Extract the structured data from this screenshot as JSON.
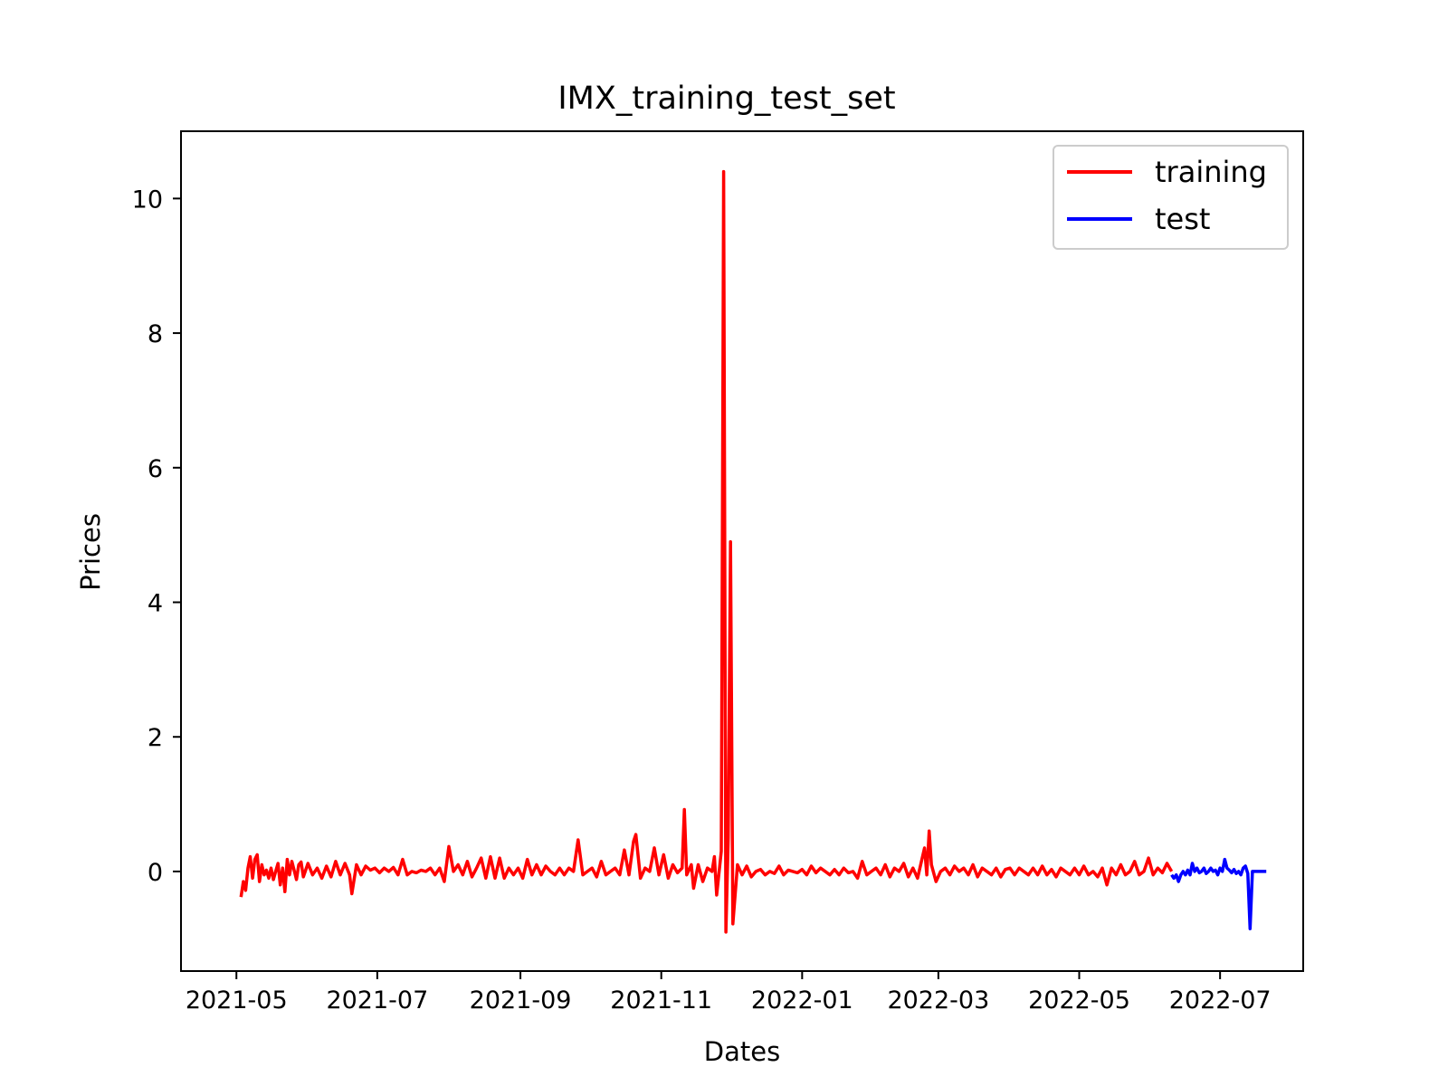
{
  "chart_data": {
    "type": "line",
    "title": "IMX_training_test_set",
    "xlabel": "Dates",
    "ylabel": "Prices",
    "x_type": "date",
    "xlim": [
      "2021-04-07",
      "2022-08-06"
    ],
    "ylim": [
      -1.48,
      11.0
    ],
    "x_ticks": [
      "2021-05-01",
      "2021-07-01",
      "2021-09-01",
      "2021-11-01",
      "2022-01-01",
      "2022-03-01",
      "2022-05-01",
      "2022-07-01"
    ],
    "x_tick_labels": [
      "2021-05",
      "2021-07",
      "2021-09",
      "2021-11",
      "2022-01",
      "2022-03",
      "2022-05",
      "2022-07"
    ],
    "y_ticks": [
      0,
      2,
      4,
      6,
      8,
      10
    ],
    "y_tick_labels": [
      "0",
      "2",
      "4",
      "6",
      "8",
      "10"
    ],
    "grid": false,
    "legend": {
      "position": "top-right"
    },
    "series": [
      {
        "name": "training",
        "color": "#ff0000",
        "points": [
          [
            "2021-05-03",
            -0.38
          ],
          [
            "2021-05-04",
            -0.15
          ],
          [
            "2021-05-05",
            -0.28
          ],
          [
            "2021-05-06",
            0.05
          ],
          [
            "2021-05-07",
            0.22
          ],
          [
            "2021-05-08",
            -0.1
          ],
          [
            "2021-05-09",
            0.18
          ],
          [
            "2021-05-10",
            0.25
          ],
          [
            "2021-05-11",
            -0.15
          ],
          [
            "2021-05-12",
            0.1
          ],
          [
            "2021-05-13",
            -0.05
          ],
          [
            "2021-05-14",
            0.02
          ],
          [
            "2021-05-15",
            -0.1
          ],
          [
            "2021-05-16",
            0.05
          ],
          [
            "2021-05-17",
            -0.12
          ],
          [
            "2021-05-18",
            0.0
          ],
          [
            "2021-05-19",
            0.12
          ],
          [
            "2021-05-20",
            -0.2
          ],
          [
            "2021-05-21",
            0.05
          ],
          [
            "2021-05-22",
            -0.3
          ],
          [
            "2021-05-23",
            0.18
          ],
          [
            "2021-05-24",
            -0.05
          ],
          [
            "2021-05-25",
            0.15
          ],
          [
            "2021-05-26",
            0.02
          ],
          [
            "2021-05-27",
            -0.12
          ],
          [
            "2021-05-28",
            0.1
          ],
          [
            "2021-05-29",
            0.14
          ],
          [
            "2021-05-30",
            -0.08
          ],
          [
            "2021-06-01",
            0.12
          ],
          [
            "2021-06-03",
            -0.05
          ],
          [
            "2021-06-05",
            0.05
          ],
          [
            "2021-06-07",
            -0.1
          ],
          [
            "2021-06-09",
            0.08
          ],
          [
            "2021-06-11",
            -0.08
          ],
          [
            "2021-06-13",
            0.15
          ],
          [
            "2021-06-15",
            -0.05
          ],
          [
            "2021-06-17",
            0.12
          ],
          [
            "2021-06-19",
            -0.05
          ],
          [
            "2021-06-20",
            -0.33
          ],
          [
            "2021-06-22",
            0.1
          ],
          [
            "2021-06-24",
            -0.05
          ],
          [
            "2021-06-26",
            0.08
          ],
          [
            "2021-06-28",
            0.02
          ],
          [
            "2021-06-30",
            0.05
          ],
          [
            "2021-07-02",
            -0.02
          ],
          [
            "2021-07-04",
            0.05
          ],
          [
            "2021-07-06",
            0.0
          ],
          [
            "2021-07-08",
            0.06
          ],
          [
            "2021-07-10",
            -0.05
          ],
          [
            "2021-07-12",
            0.18
          ],
          [
            "2021-07-14",
            -0.05
          ],
          [
            "2021-07-16",
            0.0
          ],
          [
            "2021-07-18",
            -0.02
          ],
          [
            "2021-07-20",
            0.02
          ],
          [
            "2021-07-22",
            0.0
          ],
          [
            "2021-07-24",
            0.05
          ],
          [
            "2021-07-26",
            -0.05
          ],
          [
            "2021-07-28",
            0.05
          ],
          [
            "2021-07-30",
            -0.15
          ],
          [
            "2021-08-01",
            0.37
          ],
          [
            "2021-08-03",
            0.0
          ],
          [
            "2021-08-05",
            0.1
          ],
          [
            "2021-08-07",
            -0.05
          ],
          [
            "2021-08-09",
            0.15
          ],
          [
            "2021-08-11",
            -0.08
          ],
          [
            "2021-08-13",
            0.05
          ],
          [
            "2021-08-15",
            0.2
          ],
          [
            "2021-08-17",
            -0.1
          ],
          [
            "2021-08-19",
            0.22
          ],
          [
            "2021-08-21",
            -0.1
          ],
          [
            "2021-08-23",
            0.2
          ],
          [
            "2021-08-25",
            -0.1
          ],
          [
            "2021-08-27",
            0.05
          ],
          [
            "2021-08-29",
            -0.05
          ],
          [
            "2021-08-31",
            0.05
          ],
          [
            "2021-09-02",
            -0.1
          ],
          [
            "2021-09-04",
            0.18
          ],
          [
            "2021-09-06",
            -0.05
          ],
          [
            "2021-09-08",
            0.1
          ],
          [
            "2021-09-10",
            -0.05
          ],
          [
            "2021-09-12",
            0.08
          ],
          [
            "2021-09-14",
            0.0
          ],
          [
            "2021-09-16",
            -0.05
          ],
          [
            "2021-09-18",
            0.05
          ],
          [
            "2021-09-20",
            -0.05
          ],
          [
            "2021-09-22",
            0.05
          ],
          [
            "2021-09-24",
            0.0
          ],
          [
            "2021-09-26",
            0.47
          ],
          [
            "2021-09-28",
            -0.05
          ],
          [
            "2021-09-30",
            0.0
          ],
          [
            "2021-10-02",
            0.05
          ],
          [
            "2021-10-04",
            -0.08
          ],
          [
            "2021-10-06",
            0.15
          ],
          [
            "2021-10-08",
            -0.05
          ],
          [
            "2021-10-10",
            0.0
          ],
          [
            "2021-10-12",
            0.05
          ],
          [
            "2021-10-14",
            -0.05
          ],
          [
            "2021-10-16",
            0.32
          ],
          [
            "2021-10-18",
            -0.05
          ],
          [
            "2021-10-20",
            0.45
          ],
          [
            "2021-10-21",
            0.55
          ],
          [
            "2021-10-23",
            -0.1
          ],
          [
            "2021-10-25",
            0.05
          ],
          [
            "2021-10-27",
            0.0
          ],
          [
            "2021-10-29",
            0.35
          ],
          [
            "2021-10-31",
            -0.05
          ],
          [
            "2021-11-02",
            0.25
          ],
          [
            "2021-11-04",
            -0.1
          ],
          [
            "2021-11-06",
            0.1
          ],
          [
            "2021-11-08",
            -0.02
          ],
          [
            "2021-11-10",
            0.05
          ],
          [
            "2021-11-11",
            0.92
          ],
          [
            "2021-11-12",
            -0.05
          ],
          [
            "2021-11-14",
            0.1
          ],
          [
            "2021-11-15",
            -0.25
          ],
          [
            "2021-11-17",
            0.1
          ],
          [
            "2021-11-19",
            -0.15
          ],
          [
            "2021-11-21",
            0.05
          ],
          [
            "2021-11-23",
            0.0
          ],
          [
            "2021-11-24",
            0.22
          ],
          [
            "2021-11-25",
            -0.35
          ],
          [
            "2021-11-27",
            0.3
          ],
          [
            "2021-11-28",
            10.4
          ],
          [
            "2021-11-29",
            -0.9
          ],
          [
            "2021-11-30",
            0.5
          ],
          [
            "2021-12-01",
            4.9
          ],
          [
            "2021-12-02",
            -0.78
          ],
          [
            "2021-12-04",
            0.1
          ],
          [
            "2021-12-06",
            -0.05
          ],
          [
            "2021-12-08",
            0.08
          ],
          [
            "2021-12-10",
            -0.08
          ],
          [
            "2021-12-12",
            0.0
          ],
          [
            "2021-12-14",
            0.03
          ],
          [
            "2021-12-16",
            -0.05
          ],
          [
            "2021-12-18",
            0.0
          ],
          [
            "2021-12-20",
            -0.03
          ],
          [
            "2021-12-22",
            0.08
          ],
          [
            "2021-12-24",
            -0.05
          ],
          [
            "2021-12-26",
            0.02
          ],
          [
            "2021-12-28",
            0.0
          ],
          [
            "2021-12-30",
            -0.02
          ],
          [
            "2022-01-01",
            0.03
          ],
          [
            "2022-01-03",
            -0.05
          ],
          [
            "2022-01-05",
            0.08
          ],
          [
            "2022-01-07",
            -0.02
          ],
          [
            "2022-01-09",
            0.05
          ],
          [
            "2022-01-11",
            0.0
          ],
          [
            "2022-01-13",
            -0.05
          ],
          [
            "2022-01-15",
            0.03
          ],
          [
            "2022-01-17",
            -0.05
          ],
          [
            "2022-01-19",
            0.05
          ],
          [
            "2022-01-21",
            -0.02
          ],
          [
            "2022-01-23",
            0.0
          ],
          [
            "2022-01-25",
            -0.1
          ],
          [
            "2022-01-27",
            0.15
          ],
          [
            "2022-01-29",
            -0.05
          ],
          [
            "2022-01-31",
            0.0
          ],
          [
            "2022-02-02",
            0.05
          ],
          [
            "2022-02-04",
            -0.05
          ],
          [
            "2022-02-06",
            0.1
          ],
          [
            "2022-02-08",
            -0.08
          ],
          [
            "2022-02-10",
            0.05
          ],
          [
            "2022-02-12",
            0.0
          ],
          [
            "2022-02-14",
            0.12
          ],
          [
            "2022-02-16",
            -0.08
          ],
          [
            "2022-02-18",
            0.05
          ],
          [
            "2022-02-20",
            -0.1
          ],
          [
            "2022-02-22",
            0.2
          ],
          [
            "2022-02-23",
            0.35
          ],
          [
            "2022-02-24",
            -0.05
          ],
          [
            "2022-02-25",
            0.6
          ],
          [
            "2022-02-26",
            0.1
          ],
          [
            "2022-02-28",
            -0.15
          ],
          [
            "2022-03-02",
            0.0
          ],
          [
            "2022-03-04",
            0.05
          ],
          [
            "2022-03-06",
            -0.05
          ],
          [
            "2022-03-08",
            0.08
          ],
          [
            "2022-03-10",
            0.0
          ],
          [
            "2022-03-12",
            0.05
          ],
          [
            "2022-03-14",
            -0.05
          ],
          [
            "2022-03-16",
            0.1
          ],
          [
            "2022-03-18",
            -0.08
          ],
          [
            "2022-03-20",
            0.05
          ],
          [
            "2022-03-22",
            0.0
          ],
          [
            "2022-03-24",
            -0.05
          ],
          [
            "2022-03-26",
            0.05
          ],
          [
            "2022-03-28",
            -0.08
          ],
          [
            "2022-03-30",
            0.03
          ],
          [
            "2022-04-01",
            0.05
          ],
          [
            "2022-04-03",
            -0.05
          ],
          [
            "2022-04-05",
            0.05
          ],
          [
            "2022-04-07",
            0.0
          ],
          [
            "2022-04-09",
            -0.05
          ],
          [
            "2022-04-11",
            0.05
          ],
          [
            "2022-04-13",
            -0.05
          ],
          [
            "2022-04-15",
            0.08
          ],
          [
            "2022-04-17",
            -0.05
          ],
          [
            "2022-04-19",
            0.03
          ],
          [
            "2022-04-21",
            -0.08
          ],
          [
            "2022-04-23",
            0.05
          ],
          [
            "2022-04-25",
            0.0
          ],
          [
            "2022-04-27",
            -0.05
          ],
          [
            "2022-04-29",
            0.05
          ],
          [
            "2022-05-01",
            -0.05
          ],
          [
            "2022-05-03",
            0.08
          ],
          [
            "2022-05-05",
            -0.05
          ],
          [
            "2022-05-07",
            0.0
          ],
          [
            "2022-05-09",
            -0.08
          ],
          [
            "2022-05-11",
            0.05
          ],
          [
            "2022-05-13",
            -0.2
          ],
          [
            "2022-05-15",
            0.05
          ],
          [
            "2022-05-17",
            -0.05
          ],
          [
            "2022-05-19",
            0.1
          ],
          [
            "2022-05-21",
            -0.05
          ],
          [
            "2022-05-23",
            0.0
          ],
          [
            "2022-05-25",
            0.15
          ],
          [
            "2022-05-27",
            -0.05
          ],
          [
            "2022-05-29",
            0.0
          ],
          [
            "2022-05-31",
            0.2
          ],
          [
            "2022-06-02",
            -0.05
          ],
          [
            "2022-06-04",
            0.05
          ],
          [
            "2022-06-06",
            -0.02
          ],
          [
            "2022-06-08",
            0.12
          ],
          [
            "2022-06-10",
            0.0
          ]
        ]
      },
      {
        "name": "test",
        "color": "#0000ff",
        "points": [
          [
            "2022-06-10",
            -0.05
          ],
          [
            "2022-06-11",
            -0.1
          ],
          [
            "2022-06-12",
            -0.05
          ],
          [
            "2022-06-13",
            -0.15
          ],
          [
            "2022-06-14",
            -0.05
          ],
          [
            "2022-06-15",
            0.0
          ],
          [
            "2022-06-16",
            -0.05
          ],
          [
            "2022-06-17",
            0.02
          ],
          [
            "2022-06-18",
            -0.05
          ],
          [
            "2022-06-19",
            0.12
          ],
          [
            "2022-06-20",
            0.0
          ],
          [
            "2022-06-21",
            0.05
          ],
          [
            "2022-06-22",
            -0.02
          ],
          [
            "2022-06-23",
            0.0
          ],
          [
            "2022-06-24",
            0.05
          ],
          [
            "2022-06-25",
            -0.03
          ],
          [
            "2022-06-26",
            0.0
          ],
          [
            "2022-06-27",
            0.05
          ],
          [
            "2022-06-28",
            0.0
          ],
          [
            "2022-06-29",
            0.02
          ],
          [
            "2022-06-30",
            -0.05
          ],
          [
            "2022-07-01",
            0.05
          ],
          [
            "2022-07-02",
            0.0
          ],
          [
            "2022-07-03",
            0.18
          ],
          [
            "2022-07-04",
            0.05
          ],
          [
            "2022-07-05",
            0.02
          ],
          [
            "2022-07-06",
            -0.02
          ],
          [
            "2022-07-07",
            0.03
          ],
          [
            "2022-07-08",
            -0.03
          ],
          [
            "2022-07-09",
            0.0
          ],
          [
            "2022-07-10",
            -0.05
          ],
          [
            "2022-07-11",
            0.05
          ],
          [
            "2022-07-12",
            0.08
          ],
          [
            "2022-07-13",
            -0.03
          ],
          [
            "2022-07-14",
            -0.85
          ],
          [
            "2022-07-15",
            0.0
          ],
          [
            "2022-07-16",
            0.0
          ],
          [
            "2022-07-17",
            0.0
          ],
          [
            "2022-07-18",
            0.0
          ],
          [
            "2022-07-19",
            0.0
          ],
          [
            "2022-07-20",
            0.0
          ],
          [
            "2022-07-21",
            0.0
          ]
        ]
      }
    ]
  }
}
